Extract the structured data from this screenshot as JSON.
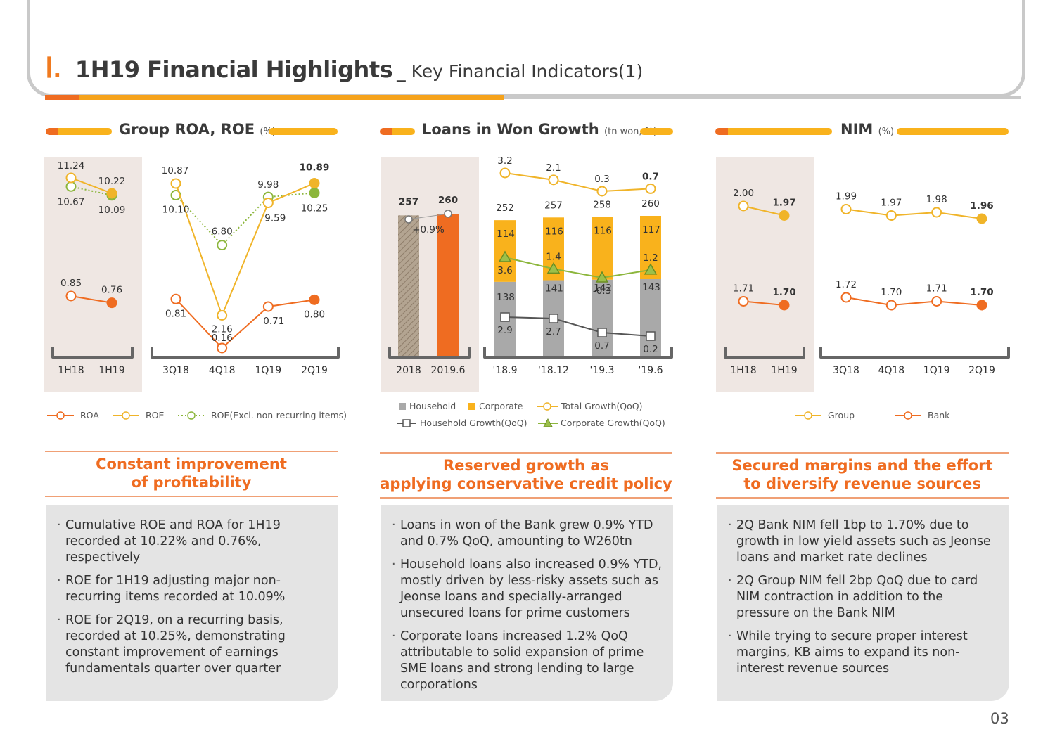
{
  "header": {
    "roman": "Ⅰ.",
    "title": "1H19 Financial Highlights",
    "subtitle": "_ Key Financial Indicators(1)"
  },
  "panels": [
    {
      "title": "Group ROA, ROE",
      "unit": "(%)",
      "section_title": [
        "Constant improvement",
        "of profitability"
      ],
      "bullets": [
        "Cumulative ROE and ROA for 1H19 recorded at 10.22% and 0.76%, respectively",
        "ROE for 1H19 adjusting major non-recurring items recorded at 10.09%",
        "ROE for 2Q19, on a recurring basis, recorded at 10.25%, demonstrating constant improvement of earnings fundamentals quarter over quarter"
      ]
    },
    {
      "title": "Loans in Won Growth",
      "unit": "(tn won, %)",
      "section_title": [
        "Reserved growth as",
        "applying conservative credit policy"
      ],
      "bullets": [
        "Loans in won of the Bank grew 0.9% YTD and 0.7% QoQ, amounting to W260tn",
        "Household loans also increased 0.9% YTD, mostly driven by less-risky assets such as Jeonse loans and specially-arranged unsecured loans for prime customers",
        "Corporate loans increased 1.2% QoQ attributable to solid expansion of prime SME loans and strong lending to large corporations"
      ]
    },
    {
      "title": "NIM",
      "unit": "(%)",
      "section_title": [
        "Secured margins and the effort",
        "to diversify revenue sources"
      ],
      "bullets": [
        "2Q Bank NIM fell 1bp to 1.70% due to growth in low yield assets such as Jeonse loans and market rate declines",
        "2Q Group NIM fell 2bp QoQ due to card NIM contraction in addition to the pressure on the Bank NIM",
        "While trying to secure proper interest margins, KB aims to expand its non-interest revenue sources"
      ]
    }
  ],
  "page_number": "03",
  "colors": {
    "orange": "#ef6c21",
    "yellow": "#f9b21c",
    "roe_line": "#f0b429",
    "green": "#8cb63c",
    "grey_bar": "#a9a9a9",
    "hatch": "#a89887",
    "shade": "#efe7e3"
  },
  "chart_data": [
    {
      "type": "line",
      "title": "Group ROA, ROE",
      "unit": "(%)",
      "group": "annual",
      "categories": [
        "1H18",
        "1H19"
      ],
      "series": [
        {
          "name": "ROA",
          "values": [
            0.85,
            0.76
          ]
        },
        {
          "name": "ROE",
          "values": [
            11.24,
            10.22
          ]
        },
        {
          "name": "ROE(Excl. non-recurring items)",
          "values": [
            10.67,
            10.09
          ]
        }
      ]
    },
    {
      "type": "line",
      "group": "quarterly",
      "categories": [
        "3Q18",
        "4Q18",
        "1Q19",
        "2Q19"
      ],
      "series": [
        {
          "name": "ROA",
          "values": [
            0.81,
            0.16,
            0.71,
            0.8
          ]
        },
        {
          "name": "ROE",
          "values": [
            10.87,
            2.16,
            9.59,
            10.89
          ]
        },
        {
          "name": "ROE(Excl. non-recurring items)",
          "values": [
            10.1,
            6.8,
            9.98,
            10.25
          ]
        }
      ]
    },
    {
      "type": "bar",
      "title": "Loans in Won Growth",
      "unit": "(tn won, %)",
      "categories": [
        "2018",
        "2019.6"
      ],
      "values": [
        257,
        260
      ],
      "annotation": "+0.9%"
    },
    {
      "type": "bar",
      "stacked": true,
      "categories": [
        "'18.9",
        "'18.12",
        "'19.3",
        "'19.6"
      ],
      "series": [
        {
          "name": "Household",
          "values": [
            138,
            141,
            142,
            143
          ]
        },
        {
          "name": "Corporate",
          "values": [
            114,
            116,
            116,
            117
          ]
        }
      ],
      "totals": [
        252,
        257,
        258,
        260
      ],
      "lines": [
        {
          "name": "Total Growth(QoQ)",
          "values": [
            3.2,
            2.1,
            0.3,
            0.7
          ]
        },
        {
          "name": "Household Growth(QoQ)",
          "values": [
            2.9,
            2.7,
            0.7,
            0.2
          ]
        },
        {
          "name": "Corporate Growth(QoQ)",
          "values": [
            3.6,
            1.4,
            -0.3,
            1.2
          ]
        }
      ]
    },
    {
      "type": "line",
      "title": "NIM",
      "unit": "(%)",
      "group": "annual",
      "categories": [
        "1H18",
        "1H19"
      ],
      "series": [
        {
          "name": "Group",
          "values": [
            2.0,
            1.97
          ]
        },
        {
          "name": "Bank",
          "values": [
            1.71,
            1.7
          ]
        }
      ]
    },
    {
      "type": "line",
      "group": "quarterly",
      "categories": [
        "3Q18",
        "4Q18",
        "1Q19",
        "2Q19"
      ],
      "series": [
        {
          "name": "Group",
          "values": [
            1.99,
            1.97,
            1.98,
            1.96
          ]
        },
        {
          "name": "Bank",
          "values": [
            1.72,
            1.7,
            1.71,
            1.7
          ]
        }
      ]
    }
  ]
}
